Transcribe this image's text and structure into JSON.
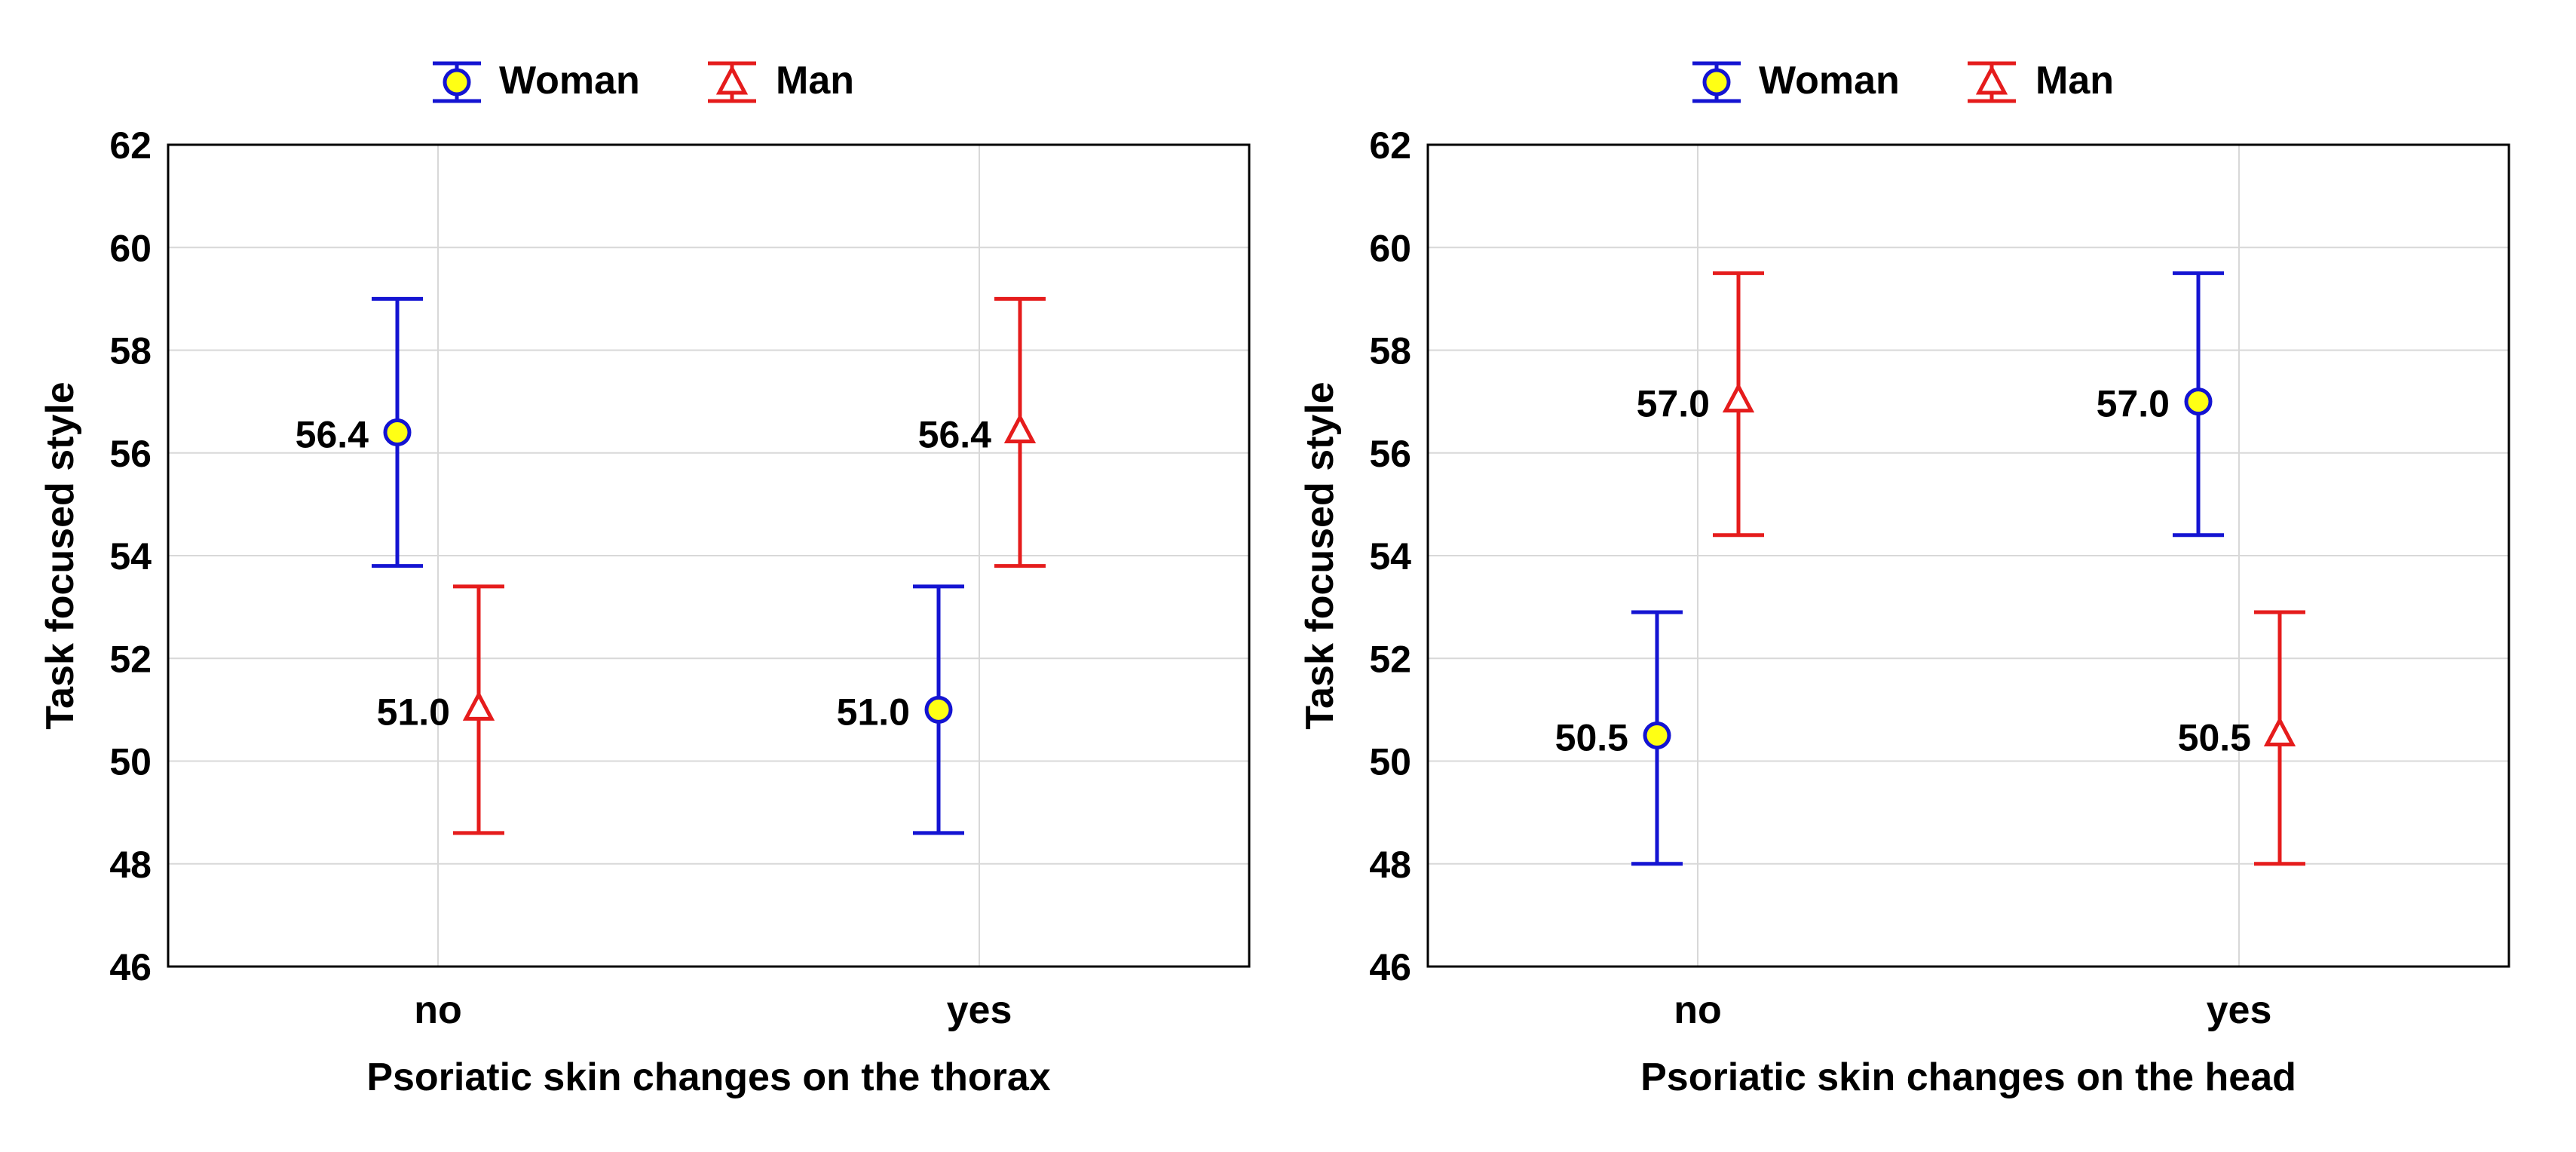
{
  "colors": {
    "woman": "#1414d2",
    "man": "#e51c1c",
    "point_fill": "#ffff14",
    "grid": "#d8d8d8"
  },
  "legend": {
    "woman": "Woman",
    "man": "Man"
  },
  "chart_data": [
    {
      "type": "errorbar",
      "title": "",
      "xlabel": "Psoriatic skin changes on the thorax",
      "ylabel": "Task focused style",
      "categories": [
        "no",
        "yes"
      ],
      "ylim": [
        46,
        62
      ],
      "yticks": [
        46,
        48,
        50,
        52,
        54,
        56,
        58,
        60,
        62
      ],
      "ytick_labels": [
        "46",
        "48",
        "50",
        "52",
        "54",
        "56",
        "58",
        "60",
        "62"
      ],
      "series": [
        {
          "name": "Woman",
          "marker": "circle",
          "means": [
            56.4,
            51.0
          ],
          "lower": [
            53.8,
            48.6
          ],
          "upper": [
            59.0,
            53.4
          ],
          "labels": [
            "56.4",
            "51.0"
          ]
        },
        {
          "name": "Man",
          "marker": "triangle",
          "means": [
            51.0,
            56.4
          ],
          "lower": [
            48.6,
            53.8
          ],
          "upper": [
            53.4,
            59.0
          ],
          "labels": [
            "51.0",
            "56.4"
          ]
        }
      ]
    },
    {
      "type": "errorbar",
      "title": "",
      "xlabel": "Psoriatic skin changes on the head",
      "ylabel": "Task focused style",
      "categories": [
        "no",
        "yes"
      ],
      "ylim": [
        46,
        62
      ],
      "yticks": [
        46,
        48,
        50,
        52,
        54,
        56,
        58,
        60,
        62
      ],
      "ytick_labels": [
        "46",
        "48",
        "50",
        "52",
        "54",
        "56",
        "58",
        "60",
        "62"
      ],
      "series": [
        {
          "name": "Woman",
          "marker": "circle",
          "means": [
            50.5,
            57.0
          ],
          "lower": [
            48.0,
            54.4
          ],
          "upper": [
            52.9,
            59.5
          ],
          "labels": [
            "50.5",
            "57.0"
          ]
        },
        {
          "name": "Man",
          "marker": "triangle",
          "means": [
            57.0,
            50.5
          ],
          "lower": [
            54.4,
            48.0
          ],
          "upper": [
            59.5,
            52.9
          ],
          "labels": [
            "57.0",
            "50.5"
          ]
        }
      ]
    }
  ]
}
